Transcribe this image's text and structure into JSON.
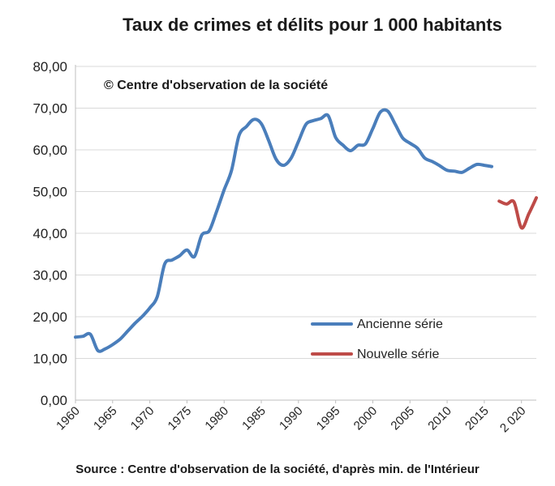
{
  "chart_data": {
    "type": "line",
    "title": "Taux de crimes et délits pour 1 000 habitants",
    "annotation": "© Centre  d'observation de la société",
    "source": "Source : Centre d'observation de la société, d'après min. de l'Intérieur",
    "ylim": [
      0,
      80
    ],
    "xlim": [
      1960,
      2022
    ],
    "y_ticks": [
      "0,00",
      "10,00",
      "20,00",
      "30,00",
      "40,00",
      "50,00",
      "60,00",
      "70,00",
      "80,00"
    ],
    "y_tick_values": [
      0,
      10,
      20,
      30,
      40,
      50,
      60,
      70,
      80
    ],
    "x_ticks": [
      "1960",
      "1965",
      "1970",
      "1975",
      "1980",
      "1985",
      "1990",
      "1995",
      "2000",
      "2005",
      "2010",
      "2015",
      "2 020"
    ],
    "x_tick_values": [
      1960,
      1965,
      1970,
      1975,
      1980,
      1985,
      1990,
      1995,
      2000,
      2005,
      2010,
      2015,
      2020
    ],
    "grid": "horizontal",
    "legend_position": "bottom-right",
    "series": [
      {
        "name": "Ancienne série",
        "color": "#4a7ebb",
        "points": [
          [
            1960,
            15.1
          ],
          [
            1961,
            15.3
          ],
          [
            1962,
            15.8
          ],
          [
            1963,
            11.9
          ],
          [
            1964,
            12.3
          ],
          [
            1965,
            13.3
          ],
          [
            1966,
            14.6
          ],
          [
            1967,
            16.5
          ],
          [
            1968,
            18.4
          ],
          [
            1969,
            20.1
          ],
          [
            1970,
            22.1
          ],
          [
            1971,
            24.8
          ],
          [
            1972,
            32.6
          ],
          [
            1973,
            33.6
          ],
          [
            1974,
            34.6
          ],
          [
            1975,
            36.0
          ],
          [
            1976,
            34.4
          ],
          [
            1977,
            39.6
          ],
          [
            1978,
            40.6
          ],
          [
            1979,
            45.3
          ],
          [
            1980,
            50.4
          ],
          [
            1981,
            55.1
          ],
          [
            1982,
            63.4
          ],
          [
            1983,
            65.6
          ],
          [
            1984,
            67.3
          ],
          [
            1985,
            66.3
          ],
          [
            1986,
            62.2
          ],
          [
            1987,
            57.7
          ],
          [
            1988,
            56.3
          ],
          [
            1989,
            58.0
          ],
          [
            1990,
            62.0
          ],
          [
            1991,
            66.1
          ],
          [
            1992,
            67.0
          ],
          [
            1993,
            67.5
          ],
          [
            1994,
            68.2
          ],
          [
            1995,
            63.0
          ],
          [
            1996,
            61.1
          ],
          [
            1997,
            59.8
          ],
          [
            1998,
            61.1
          ],
          [
            1999,
            61.4
          ],
          [
            2000,
            65.1
          ],
          [
            2001,
            69.0
          ],
          [
            2002,
            69.3
          ],
          [
            2003,
            66.2
          ],
          [
            2004,
            62.9
          ],
          [
            2005,
            61.6
          ],
          [
            2006,
            60.4
          ],
          [
            2007,
            58.0
          ],
          [
            2008,
            57.2
          ],
          [
            2009,
            56.2
          ],
          [
            2010,
            55.1
          ],
          [
            2011,
            54.9
          ],
          [
            2012,
            54.6
          ],
          [
            2013,
            55.6
          ],
          [
            2014,
            56.5
          ],
          [
            2015,
            56.3
          ],
          [
            2016,
            56.0
          ]
        ]
      },
      {
        "name": "Nouvelle série",
        "color": "#be4b48",
        "points": [
          [
            2017,
            47.7
          ],
          [
            2018,
            47.0
          ],
          [
            2019,
            47.5
          ],
          [
            2020,
            41.3
          ],
          [
            2021,
            44.7
          ],
          [
            2022,
            48.5
          ]
        ]
      }
    ]
  }
}
